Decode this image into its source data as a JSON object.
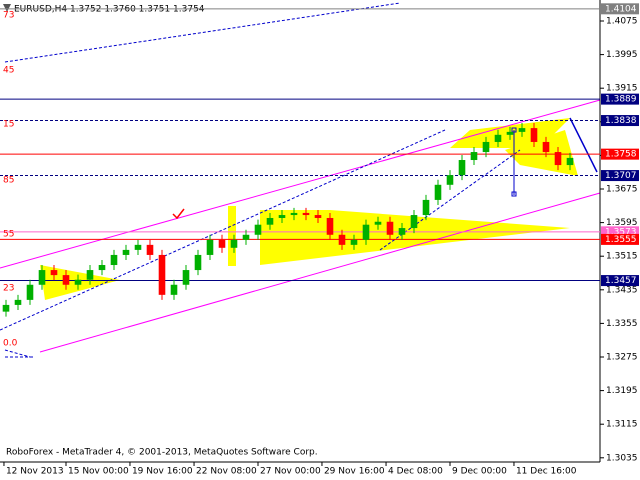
{
  "chart_data": {
    "type": "candlestick",
    "title": "EURUSD,H4  1.3752 1.3760 1.3751 1.3754",
    "footer": "RoboForex - MetaTrader 4, © 2001-2013, MetaQuotes Software Corp.",
    "up_color": "#00b000",
    "down_color": "#ff0000",
    "grid": false,
    "open": [
      1.3383,
      1.3399,
      1.3411,
      1.3447,
      1.3482,
      1.347,
      1.3447,
      1.3459,
      1.3482,
      1.3494,
      1.3518,
      1.353,
      1.3542,
      1.3518,
      1.3423,
      1.3447,
      1.3482,
      1.3518,
      1.3554,
      1.3535,
      1.3554,
      1.3566,
      1.359,
      1.3606,
      1.3613,
      1.3618,
      1.3613,
      1.3606,
      1.3566,
      1.3542,
      1.3554,
      1.359,
      1.3597,
      1.3566,
      1.3582,
      1.3613,
      1.3649,
      1.3685,
      1.3708,
      1.3744,
      1.3763,
      1.3787,
      1.3804,
      1.3811,
      1.382,
      1.3787,
      1.3763,
      1.3732
    ],
    "high": [
      1.3411,
      1.3423,
      1.3459,
      1.3494,
      1.3494,
      1.3482,
      1.3471,
      1.3494,
      1.3506,
      1.353,
      1.3542,
      1.3554,
      1.3554,
      1.353,
      1.3459,
      1.3494,
      1.353,
      1.3566,
      1.3566,
      1.3566,
      1.3578,
      1.3602,
      1.3618,
      1.3625,
      1.363,
      1.363,
      1.3625,
      1.3618,
      1.3578,
      1.3566,
      1.3602,
      1.3609,
      1.3609,
      1.3594,
      1.3625,
      1.3661,
      1.3697,
      1.372,
      1.3756,
      1.3775,
      1.3799,
      1.3816,
      1.3823,
      1.3832,
      1.3832,
      1.3799,
      1.3775,
      1.3761
    ],
    "low": [
      1.3371,
      1.3387,
      1.3399,
      1.3435,
      1.3458,
      1.3435,
      1.3435,
      1.3447,
      1.347,
      1.3482,
      1.3506,
      1.3518,
      1.3506,
      1.3411,
      1.3411,
      1.3435,
      1.347,
      1.3506,
      1.3523,
      1.3523,
      1.3542,
      1.3554,
      1.3578,
      1.3594,
      1.3601,
      1.3601,
      1.3594,
      1.3554,
      1.353,
      1.353,
      1.3542,
      1.3578,
      1.3554,
      1.3554,
      1.357,
      1.3601,
      1.3637,
      1.3673,
      1.3696,
      1.3732,
      1.3751,
      1.3775,
      1.3792,
      1.3799,
      1.3775,
      1.3751,
      1.372,
      1.372
    ],
    "close": [
      1.3399,
      1.3411,
      1.3447,
      1.3482,
      1.347,
      1.3447,
      1.3459,
      1.3482,
      1.3494,
      1.3518,
      1.353,
      1.3542,
      1.3518,
      1.3423,
      1.3447,
      1.3482,
      1.3518,
      1.3554,
      1.3535,
      1.3554,
      1.3566,
      1.359,
      1.3606,
      1.3613,
      1.3618,
      1.3613,
      1.3606,
      1.3566,
      1.3542,
      1.3554,
      1.359,
      1.3597,
      1.3566,
      1.3582,
      1.3613,
      1.3649,
      1.3685,
      1.3708,
      1.3744,
      1.3763,
      1.3787,
      1.3804,
      1.3811,
      1.382,
      1.3787,
      1.3763,
      1.3732,
      1.3749
    ],
    "ylim": [
      1.3025,
      1.4125
    ],
    "yticks": [
      1.3035,
      1.3115,
      1.3195,
      1.3275,
      1.3355,
      1.3435,
      1.3515,
      1.3595,
      1.3675,
      1.3755,
      1.3835,
      1.3915,
      1.3995,
      1.4075
    ],
    "xlim": [
      -0.5,
      49.5
    ],
    "xticks": [
      {
        "value": -0.17,
        "label": "12 Nov 2013"
      },
      {
        "value": 5,
        "label": "15 Nov 00:00"
      },
      {
        "value": 10.33,
        "label": "19 Nov 16:00"
      },
      {
        "value": 15.67,
        "label": "22 Nov 08:00"
      },
      {
        "value": 21,
        "label": "27 Nov 00:00"
      },
      {
        "value": 26.33,
        "label": "29 Nov 16:00"
      },
      {
        "value": 31.67,
        "label": "4 Dec 08:00"
      },
      {
        "value": 37,
        "label": "9 Dec 00:00"
      },
      {
        "value": 42.33,
        "label": "11 Dec 16:00"
      }
    ],
    "levels": [
      {
        "value": 1.4104,
        "color": "#808080"
      },
      {
        "value": 1.3889,
        "color": "#000080"
      },
      {
        "value": 1.3838,
        "color": "#000080",
        "dash": true
      },
      {
        "value": 1.3758,
        "color": "#ff0000"
      },
      {
        "value": 1.3707,
        "color": "#000080",
        "dash": true
      },
      {
        "value": 1.3573,
        "color": "#ff66cc"
      },
      {
        "value": 1.3555,
        "color": "#ff0000"
      },
      {
        "value": 1.3457,
        "color": "#000080"
      }
    ],
    "annotations": [
      "73",
      "45",
      "15",
      "85",
      "55",
      "23",
      "0.0"
    ]
  }
}
